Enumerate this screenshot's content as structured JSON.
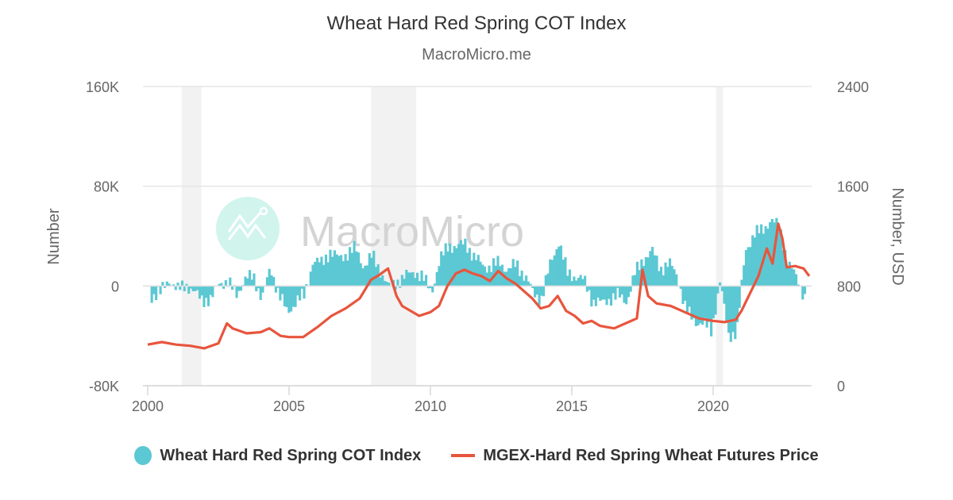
{
  "header": {
    "title": "Wheat Hard Red Spring COT Index",
    "subtitle": "MacroMicro.me"
  },
  "watermark": {
    "text": "MacroMicro"
  },
  "colors": {
    "cot_bar": "#5BC8D3",
    "price_line": "#E8553D",
    "recession_band": "#F2F2F2",
    "gridline": "#E6E6E6",
    "text": "#333333",
    "axis_text": "#666666",
    "watermark_logo": "#C9F2EA",
    "watermark_text": "#D4D4D4"
  },
  "legend": {
    "items": [
      {
        "label": "Wheat Hard Red Spring COT Index",
        "marker": "circle",
        "color": "#5BC8D3"
      },
      {
        "label": "MGEX-Hard Red Spring Wheat Futures Price",
        "marker": "line",
        "color": "#E8553D"
      }
    ]
  },
  "chart_data": {
    "type": "bar+line",
    "title": "Wheat Hard Red Spring COT Index",
    "subtitle": "MacroMicro.me",
    "xlabel": "",
    "x_ticks": [
      "2000",
      "2005",
      "2010",
      "2015",
      "2020"
    ],
    "x_range": [
      2000,
      2023.4
    ],
    "y_left": {
      "label": "Number",
      "ticks": [
        "160K",
        "80K",
        "0",
        "-80K"
      ],
      "range": [
        -80000,
        160000
      ]
    },
    "y_right": {
      "label": "Number, USD",
      "ticks": [
        "2400",
        "1600",
        "800",
        "0"
      ],
      "range": [
        0,
        2400
      ]
    },
    "grid": true,
    "legend_position": "bottom",
    "recession_bands": [
      {
        "start": 2001.2,
        "end": 2001.9
      },
      {
        "start": 2007.9,
        "end": 2009.5
      },
      {
        "start": 2020.1,
        "end": 2020.35
      }
    ],
    "series": [
      {
        "name": "Wheat Hard Red Spring COT Index",
        "type": "bar",
        "axis": "left",
        "x": [
          2000.1,
          2000.4,
          2000.7,
          2001.0,
          2001.3,
          2001.6,
          2001.9,
          2002.2,
          2002.5,
          2002.8,
          2003.1,
          2003.4,
          2003.7,
          2004.0,
          2004.3,
          2004.6,
          2004.9,
          2005.2,
          2005.5,
          2005.8,
          2006.1,
          2006.4,
          2006.7,
          2007.0,
          2007.3,
          2007.6,
          2007.9,
          2008.2,
          2008.5,
          2008.8,
          2009.1,
          2009.4,
          2009.7,
          2010.0,
          2010.3,
          2010.6,
          2010.9,
          2011.2,
          2011.5,
          2011.8,
          2012.1,
          2012.4,
          2012.7,
          2013.0,
          2013.3,
          2013.6,
          2013.9,
          2014.2,
          2014.5,
          2014.8,
          2015.1,
          2015.4,
          2015.7,
          2016.0,
          2016.3,
          2016.6,
          2016.9,
          2017.2,
          2017.5,
          2017.8,
          2018.1,
          2018.4,
          2018.7,
          2019.0,
          2019.3,
          2019.6,
          2019.9,
          2020.2,
          2020.5,
          2020.8,
          2021.1,
          2021.4,
          2021.7,
          2022.0,
          2022.3,
          2022.6,
          2022.9,
          2023.2
        ],
        "values": [
          -8000,
          -6000,
          6000,
          -4000,
          2000,
          -6000,
          -10000,
          -12000,
          4000,
          2000,
          -6000,
          5000,
          8000,
          -10000,
          14000,
          -6000,
          -22000,
          -12000,
          -8000,
          20000,
          18000,
          28000,
          22000,
          26000,
          30000,
          16000,
          24000,
          12000,
          -2000,
          4000,
          8000,
          12000,
          6000,
          -4000,
          20000,
          34000,
          30000,
          36000,
          22000,
          18000,
          14000,
          20000,
          12000,
          18000,
          8000,
          -6000,
          -10000,
          18000,
          36000,
          10000,
          8000,
          4000,
          -12000,
          -14000,
          -10000,
          -8000,
          -12000,
          10000,
          22000,
          28000,
          14000,
          18000,
          8000,
          -20000,
          -28000,
          -30000,
          -36000,
          4000,
          -40000,
          -36000,
          28000,
          42000,
          44000,
          54000,
          46000,
          20000,
          6000,
          -8000
        ]
      },
      {
        "name": "MGEX-Hard Red Spring Wheat Futures Price",
        "type": "line",
        "axis": "right",
        "x": [
          2000.0,
          2000.5,
          2001.0,
          2001.5,
          2002.0,
          2002.5,
          2002.8,
          2003.0,
          2003.5,
          2004.0,
          2004.3,
          2004.7,
          2005.0,
          2005.5,
          2006.0,
          2006.5,
          2007.0,
          2007.5,
          2007.9,
          2008.2,
          2008.5,
          2008.8,
          2009.0,
          2009.3,
          2009.6,
          2010.0,
          2010.3,
          2010.6,
          2010.9,
          2011.2,
          2011.5,
          2011.8,
          2012.1,
          2012.4,
          2012.7,
          2013.0,
          2013.3,
          2013.6,
          2013.9,
          2014.2,
          2014.5,
          2014.8,
          2015.1,
          2015.4,
          2015.7,
          2016.0,
          2016.5,
          2017.0,
          2017.3,
          2017.5,
          2017.7,
          2018.0,
          2018.5,
          2019.0,
          2019.5,
          2020.0,
          2020.4,
          2020.8,
          2021.0,
          2021.3,
          2021.6,
          2021.9,
          2022.1,
          2022.3,
          2022.45,
          2022.6,
          2022.9,
          2023.2,
          2023.4
        ],
        "values": [
          330,
          350,
          330,
          320,
          300,
          340,
          500,
          460,
          420,
          430,
          460,
          400,
          390,
          390,
          470,
          560,
          620,
          700,
          850,
          890,
          940,
          720,
          640,
          600,
          560,
          590,
          640,
          800,
          900,
          930,
          900,
          880,
          840,
          920,
          860,
          820,
          760,
          700,
          620,
          640,
          720,
          600,
          560,
          500,
          520,
          480,
          460,
          510,
          540,
          930,
          720,
          660,
          640,
          590,
          540,
          520,
          510,
          530,
          600,
          740,
          880,
          1100,
          980,
          1300,
          1180,
          950,
          960,
          940,
          880
        ]
      }
    ]
  }
}
